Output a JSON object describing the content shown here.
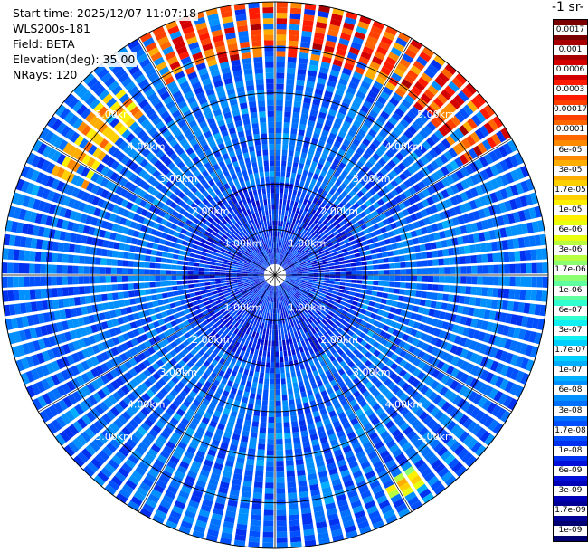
{
  "header": {
    "start_time": "Start time: 2025/12/07 11:07:18",
    "instrument": "WLS200s-181",
    "field": "Field: BETA",
    "elevation": "Elevation(deg): 35.00",
    "nrays": "NRays: 120"
  },
  "colorbar": {
    "unit_label": "-1 sr-",
    "labels": [
      "0.0017",
      "0.001",
      "0.0006",
      "0.0003",
      "0.00017",
      "0.0001",
      "6e-05",
      "3e-05",
      "1.7e-05",
      "1e-05",
      "6e-06",
      "3e-06",
      "1.7e-06",
      "1e-06",
      "6e-07",
      "3e-07",
      "1.7e-07",
      "1e-07",
      "6e-08",
      "3e-08",
      "1.7e-08",
      "1e-08",
      "6e-09",
      "3e-09",
      "1.7e-09",
      "1e-09"
    ],
    "colors": [
      "#7a0000",
      "#a80000",
      "#d40000",
      "#ff1a00",
      "#ff4000",
      "#ff6600",
      "#ff8a00",
      "#ffad00",
      "#ffd000",
      "#fff000",
      "#e8ff10",
      "#b8ff40",
      "#8cff70",
      "#60ffa0",
      "#30ffd0",
      "#10f0f0",
      "#00d0ff",
      "#00b0ff",
      "#0090ff",
      "#0070ff",
      "#0050ff",
      "#0030f0",
      "#0010d8",
      "#0000b8",
      "#000096",
      "#000070"
    ]
  },
  "chart_data": {
    "type": "heatmap",
    "projection": "polar (PPI scan)",
    "title": "",
    "field": "BETA",
    "elevation_deg": 35.0,
    "n_rays": 120,
    "range_ring_labels": [
      "1.00km",
      "2.00km",
      "3.00km",
      "4.00km",
      "5.00km"
    ],
    "range_rings_km": [
      1,
      2,
      3,
      4,
      5
    ],
    "max_range_km": 6.0,
    "colorbar_scale": "log",
    "colorbar_range": [
      1e-09,
      0.0017
    ],
    "dominant_value": 3e-08,
    "near_range_value": 1e-08,
    "high_value_arcs": [
      {
        "azimuth_from_deg": 330,
        "azimuth_to_deg": 60,
        "range_km": [
          4.8,
          6.0
        ],
        "value": 0.0003
      },
      {
        "azimuth_from_deg": 295,
        "azimuth_to_deg": 320,
        "range_km": [
          4.6,
          5.4
        ],
        "value": 6e-05
      },
      {
        "azimuth_from_deg": 145,
        "azimuth_to_deg": 152,
        "range_km": [
          5.2,
          5.6
        ],
        "value": 1e-05
      }
    ]
  }
}
